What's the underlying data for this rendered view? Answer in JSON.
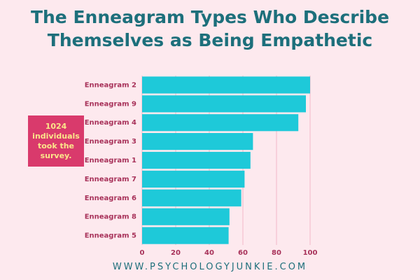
{
  "chart_data": {
    "type": "hbar",
    "title": "The Enneagram Types Who Describe Themselves as Being Empathetic",
    "annotation": "1024 individuals took the survey.",
    "footer": "WWW.PSYCHOLOGYJUNKIE.COM",
    "categories": [
      "Enneagram 2",
      "Enneagram 9",
      "Enneagram 4",
      "Enneagram 3",
      "Enneagram 1",
      "Enneagram 7",
      "Enneagram 6",
      "Enneagram 8",
      "Enneagram 5"
    ],
    "values": [
      100,
      97.5,
      93,
      66,
      64.5,
      61,
      59,
      52,
      51.5
    ],
    "color": "#1ec9d9",
    "xlim": [
      0,
      100
    ],
    "xticks": [
      0,
      20,
      40,
      60,
      80,
      100
    ],
    "grid": true
  }
}
